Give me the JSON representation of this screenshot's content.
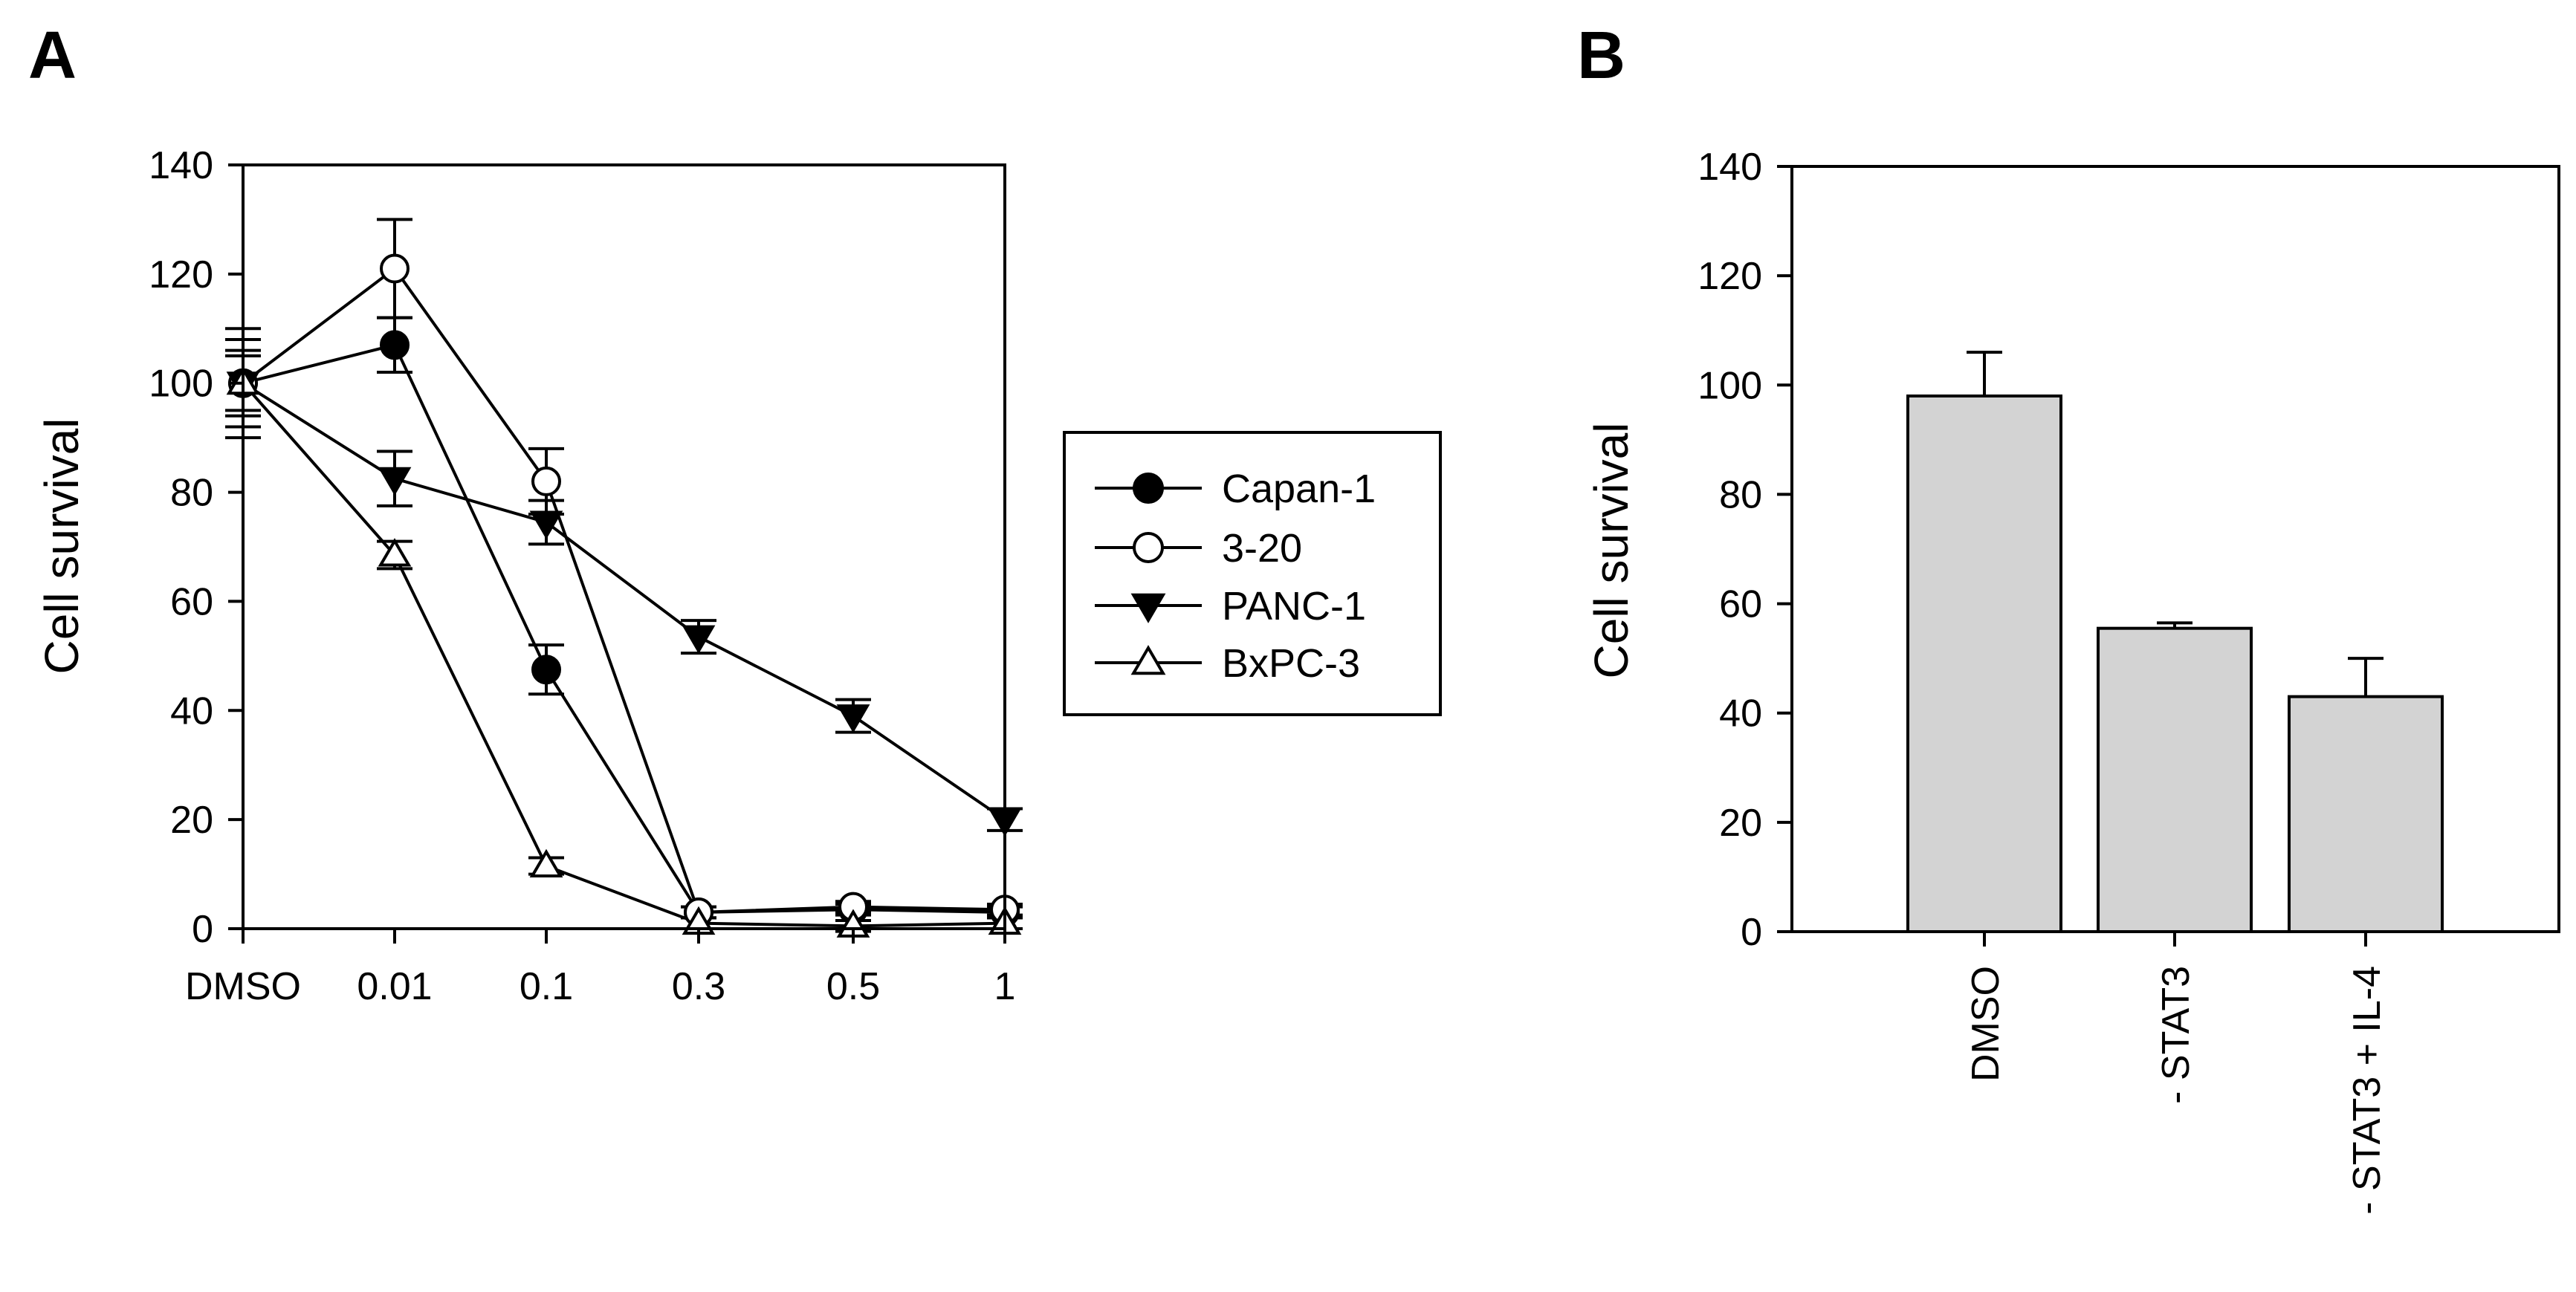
{
  "panels": [
    {
      "label": "A",
      "chart_data": {
        "type": "line",
        "title": "",
        "xlabel": "",
        "ylabel": "Cell survival",
        "categories": [
          "DMSO",
          "0.01",
          "0.1",
          "0.3",
          "0.5",
          "1"
        ],
        "ylim": [
          0,
          140
        ],
        "yticks": [
          0,
          20,
          40,
          60,
          80,
          100,
          120,
          140
        ],
        "legend_position": "right",
        "series": [
          {
            "name": "Capan-1",
            "marker": "filled-circle",
            "values": [
              100,
              107,
              47.5,
              3,
              3.5,
              3
            ],
            "errors": [
              5,
              5,
              4.5,
              1,
              1,
              1
            ]
          },
          {
            "name": "3-20",
            "marker": "open-circle",
            "values": [
              100,
              121,
              82,
              3,
              4,
              3.5
            ],
            "errors": [
              6,
              9,
              6,
              1,
              1,
              1
            ]
          },
          {
            "name": "PANC-1",
            "marker": "filled-triangle-down",
            "values": [
              100,
              82.5,
              74.5,
              53.5,
              39,
              20
            ],
            "errors": [
              10,
              5,
              4,
              3,
              3,
              2
            ]
          },
          {
            "name": "BxPC-3",
            "marker": "open-triangle-up",
            "values": [
              100,
              68.5,
              11.5,
              1,
              0.5,
              1
            ],
            "errors": [
              8,
              2.5,
              1.5,
              1,
              1,
              1
            ]
          }
        ]
      }
    },
    {
      "label": "B",
      "chart_data": {
        "type": "bar",
        "title": "",
        "xlabel": "",
        "ylabel": "Cell survival",
        "categories": [
          "DMSO",
          "- STAT3",
          "- STAT3 + IL-4"
        ],
        "values": [
          98,
          55.5,
          43
        ],
        "errors": [
          8,
          1,
          7
        ],
        "bar_color": "#d3d3d3",
        "ylim": [
          0,
          140
        ],
        "yticks": [
          0,
          20,
          40,
          60,
          80,
          100,
          120,
          140
        ]
      }
    }
  ]
}
